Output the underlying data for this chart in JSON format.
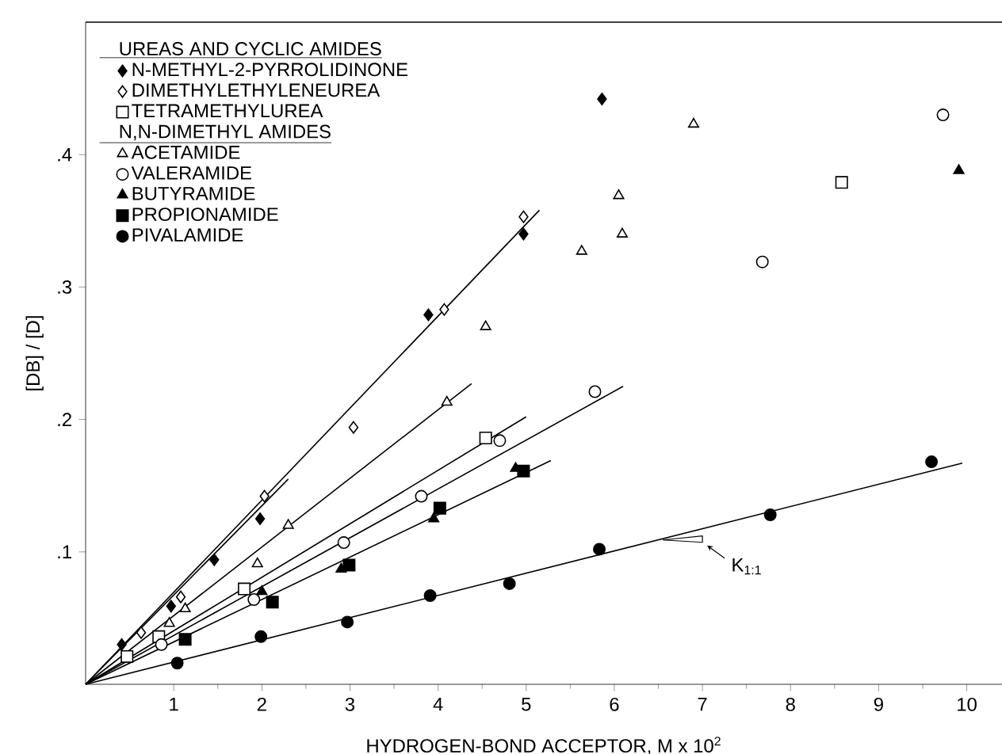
{
  "chart_data": {
    "type": "scatter",
    "xlabel": "HYDROGEN-BOND ACCEPTOR, M x 10$^{2}$",
    "ylabel": "[DB] / [D]",
    "legend_title": "UREAS AND CYCLIC AMIDES",
    "xlim": [
      0,
      10.4
    ],
    "ylim": [
      0,
      0.5
    ],
    "xticks": [
      1,
      2,
      3,
      4,
      5,
      6,
      7,
      8,
      9,
      10
    ],
    "yticks": [
      {
        "value": 0.1,
        "label": ".1"
      },
      {
        "value": 0.2,
        "label": ".2"
      },
      {
        "value": 0.3,
        "label": ".3"
      },
      {
        "value": 0.4,
        "label": ".4"
      }
    ],
    "grid": false,
    "legend": "top left",
    "annotations": [
      "N,N-DIMETHYL AMIDES",
      {
        "text": "K$_{1:1}$",
        "x": 7.0,
        "y": 0.112
      }
    ],
    "series": [
      {
        "name": "N-METHYL-2-PYRROLIDINONE",
        "marker": "diamond",
        "color": "#000000",
        "x": [
          0.41,
          0.97,
          1.46,
          1.98,
          3.89,
          4.97,
          5.86
        ],
        "values": [
          0.03,
          0.059,
          0.094,
          0.125,
          0.279,
          0.34,
          0.442
        ]
      },
      {
        "name": "DIMETHYLETHYLENEUREA",
        "marker": "diamond",
        "color": "#ffffff",
        "x": [
          0.63,
          1.08,
          2.03,
          3.04,
          4.07,
          4.97
        ],
        "values": [
          0.039,
          0.066,
          0.142,
          0.194,
          0.283,
          0.353
        ]
      },
      {
        "name": "TETRAMETHYLUREA",
        "marker": "square",
        "color": "#ffffff",
        "x": [
          0.47,
          0.83,
          1.8,
          4.54,
          8.58
        ],
        "values": [
          0.021,
          0.036,
          0.072,
          0.186,
          0.379
        ]
      },
      {
        "name": "ACETAMIDE",
        "marker": "triangle",
        "color": "#ffffff",
        "x": [
          0.95,
          1.13,
          1.95,
          2.3,
          4.1,
          4.54,
          5.63,
          6.09,
          6.05,
          6.9
        ],
        "values": [
          0.046,
          0.057,
          0.091,
          0.12,
          0.213,
          0.27,
          0.327,
          0.34,
          0.369,
          0.423
        ]
      },
      {
        "name": "VALERAMIDE",
        "marker": "circle",
        "color": "#ffffff",
        "x": [
          0.86,
          1.91,
          2.93,
          3.81,
          4.7,
          5.78,
          7.68,
          9.73
        ],
        "values": [
          0.03,
          0.064,
          0.107,
          0.142,
          0.184,
          0.221,
          0.319,
          0.43
        ]
      },
      {
        "name": "BUTYRAMIDE",
        "marker": "triangle",
        "color": "#000000",
        "x": [
          2.0,
          2.9,
          3.95,
          4.88,
          9.91
        ],
        "values": [
          0.07,
          0.087,
          0.125,
          0.163,
          0.388
        ]
      },
      {
        "name": "PROPIONAMIDE",
        "marker": "square",
        "color": "#000000",
        "x": [
          1.13,
          2.12,
          2.99,
          4.02,
          4.97
        ],
        "values": [
          0.034,
          0.062,
          0.09,
          0.133,
          0.161
        ]
      },
      {
        "name": "PIVALAMIDE",
        "marker": "circle",
        "color": "#000000",
        "x": [
          1.04,
          1.99,
          2.97,
          3.91,
          4.81,
          5.83,
          7.77,
          9.6
        ],
        "values": [
          0.016,
          0.036,
          0.047,
          0.067,
          0.076,
          0.102,
          0.128,
          0.168
        ]
      },
      {
        "type": "line",
        "marker": "none",
        "line_style": "solid",
        "color": "#000000",
        "x": [
          0,
          5.15
        ],
        "values": [
          0,
          0.358
        ]
      },
      {
        "type": "line",
        "marker": "none",
        "line_style": "solid",
        "color": "#000000",
        "x": [
          0,
          2.3
        ],
        "values": [
          0,
          0.155
        ]
      },
      {
        "type": "line",
        "marker": "none",
        "line_style": "solid",
        "color": "#000000",
        "x": [
          0,
          4.38
        ],
        "values": [
          0,
          0.227
        ]
      },
      {
        "type": "line",
        "marker": "none",
        "line_style": "solid",
        "color": "#000000",
        "x": [
          0,
          5.0
        ],
        "values": [
          0,
          0.202
        ]
      },
      {
        "type": "line",
        "marker": "none",
        "line_style": "solid",
        "color": "#000000",
        "x": [
          0,
          6.1
        ],
        "values": [
          0,
          0.225
        ]
      },
      {
        "type": "line",
        "marker": "none",
        "line_style": "solid",
        "color": "#000000",
        "x": [
          0,
          5.28
        ],
        "values": [
          0,
          0.169
        ]
      },
      {
        "type": "line",
        "marker": "none",
        "line_style": "solid",
        "color": "#000000",
        "x": [
          0,
          9.95
        ],
        "values": [
          0,
          0.167
        ]
      }
    ]
  }
}
